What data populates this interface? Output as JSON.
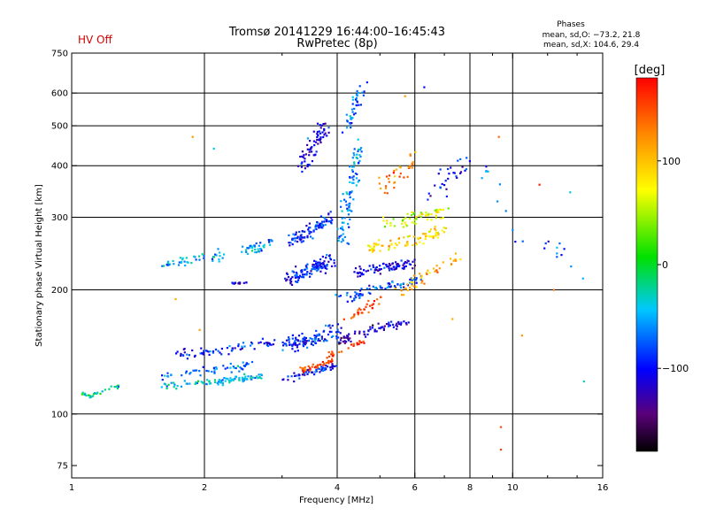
{
  "header": {
    "hv_status": "HV Off",
    "title_line1": "Tromsø 20141229 16:44:00–16:45:43",
    "title_line2": "RwPretec (8p)",
    "phases_title": "Phases",
    "phases_O": "mean, sd,O: −73.2, 21.8",
    "phases_X": "mean, sd,X: 104.6, 29.4"
  },
  "colors": {
    "background": "#ffffff",
    "grid": "#000000",
    "warning": "#d40000"
  },
  "colorbar": {
    "unit_label": "[deg]",
    "ticks": [
      "100",
      "0",
      "−100"
    ],
    "tick_values": [
      100,
      0,
      -100
    ],
    "range": [
      -180,
      180
    ],
    "colormap": "rainbow (black-violet-blue-cyan-green-yellow-orange-red)"
  },
  "chart_data": {
    "type": "scatter",
    "title": "Tromsø 20141229 16:44:00–16:45:43",
    "subtitle": "RwPretec (8p)",
    "xlabel": "Frequency [MHz]",
    "ylabel": "Stationary phase Virtual Height [km]",
    "x_scale": "log",
    "y_scale": "log",
    "xlim": [
      1,
      16
    ],
    "ylim": [
      70,
      750
    ],
    "x_ticks": [
      1,
      2,
      4,
      6,
      8,
      10,
      16
    ],
    "x_tick_labels": [
      "1",
      "2",
      "4",
      "6",
      "8",
      "10",
      "16"
    ],
    "x_grid": [
      2,
      4,
      6,
      8,
      10
    ],
    "y_ticks": [
      75,
      100,
      200,
      300,
      400,
      500,
      600,
      750
    ],
    "y_tick_labels": [
      "75",
      "100",
      "200",
      "300",
      "400",
      "500",
      "600",
      "750"
    ],
    "y_grid": [
      100,
      200,
      300,
      400,
      500,
      600
    ],
    "grid": true,
    "color_encoding": "phase in degrees",
    "traces": [
      {
        "x": [
          1.05,
          1.1,
          1.15,
          1.2,
          1.28
        ],
        "y": [
          112,
          110,
          113,
          115,
          117
        ],
        "phase": -25,
        "spread": 0.2,
        "count": 30
      },
      {
        "x": [
          1.6,
          1.75,
          1.9,
          2.1,
          2.3,
          2.5,
          2.7
        ],
        "y": [
          118,
          118,
          119,
          120,
          121,
          122,
          124
        ],
        "phase": -40,
        "spread": 0.4,
        "count": 90
      },
      {
        "x": [
          1.7,
          1.9,
          2.1,
          2.3,
          2.5,
          2.7,
          2.9
        ],
        "y": [
          140,
          140,
          142,
          144,
          146,
          149,
          150
        ],
        "phase": -95,
        "spread": 0.5,
        "count": 70
      },
      {
        "x": [
          1.6,
          1.8,
          2.0,
          2.2,
          2.4,
          2.6
        ],
        "y": [
          124,
          126,
          127,
          128,
          130,
          133
        ],
        "phase": -70,
        "spread": 0.5,
        "count": 50
      },
      {
        "x": [
          1.6,
          1.75,
          1.9,
          2.05,
          2.2
        ],
        "y": [
          230,
          235,
          238,
          240,
          243
        ],
        "phase": -50,
        "spread": 0.6,
        "count": 45
      },
      {
        "x": [
          2.4,
          2.55,
          2.7,
          2.85
        ],
        "y": [
          248,
          252,
          256,
          262
        ],
        "phase": -60,
        "spread": 0.6,
        "count": 40
      },
      {
        "x": [
          2.3,
          2.4,
          2.5
        ],
        "y": [
          208,
          208,
          208
        ],
        "phase": -130,
        "spread": 0.1,
        "count": 14
      },
      {
        "x": [
          3.0,
          3.2,
          3.4,
          3.6,
          3.8,
          4.0
        ],
        "y": [
          120,
          123,
          126,
          128,
          130,
          133
        ],
        "phase": -100,
        "spread": 0.4,
        "count": 55
      },
      {
        "x": [
          3.3,
          3.45,
          3.6,
          3.75,
          3.9
        ],
        "y": [
          128,
          129,
          131,
          133,
          136
        ],
        "phase": 150,
        "spread": 0.3,
        "count": 40
      },
      {
        "x": [
          3.0,
          3.2,
          3.4,
          3.6,
          3.8,
          4.0
        ],
        "y": [
          145,
          148,
          150,
          153,
          157,
          160
        ],
        "phase": -90,
        "spread": 0.8,
        "count": 110
      },
      {
        "x": [
          3.1,
          3.3,
          3.5,
          3.7,
          3.9
        ],
        "y": [
          210,
          220,
          225,
          230,
          235
        ],
        "phase": -95,
        "spread": 0.8,
        "count": 120
      },
      {
        "x": [
          3.1,
          3.3,
          3.5,
          3.7,
          3.9
        ],
        "y": [
          260,
          270,
          280,
          290,
          300
        ],
        "phase": -90,
        "spread": 0.8,
        "count": 90
      },
      {
        "x": [
          3.3,
          3.45,
          3.6,
          3.75
        ],
        "y": [
          400,
          430,
          470,
          500
        ],
        "phase": -110,
        "spread": 1.0,
        "count": 70
      },
      {
        "x": [
          4.1,
          4.2,
          4.3,
          4.4,
          4.5
        ],
        "y": [
          260,
          300,
          350,
          400,
          450
        ],
        "phase": -60,
        "spread": 1.0,
        "count": 90
      },
      {
        "x": [
          4.2,
          4.3,
          4.45,
          4.6
        ],
        "y": [
          480,
          530,
          580,
          620
        ],
        "phase": -70,
        "spread": 0.8,
        "count": 40
      },
      {
        "x": [
          4.0,
          4.4,
          4.8,
          5.3,
          5.8
        ],
        "y": [
          150,
          155,
          160,
          165,
          168
        ],
        "phase": -120,
        "spread": 0.5,
        "count": 70
      },
      {
        "x": [
          4.0,
          4.4,
          4.8,
          5.3,
          5.8,
          6.3
        ],
        "y": [
          190,
          195,
          200,
          205,
          210,
          215
        ],
        "phase": -80,
        "spread": 0.6,
        "count": 70
      },
      {
        "x": [
          4.1,
          4.4,
          4.7,
          5.1
        ],
        "y": [
          170,
          175,
          182,
          190
        ],
        "phase": 150,
        "spread": 0.5,
        "count": 30
      },
      {
        "x": [
          3.8,
          4.0,
          4.3,
          4.6
        ],
        "y": [
          138,
          140,
          145,
          150
        ],
        "phase": 160,
        "spread": 0.4,
        "count": 25
      },
      {
        "x": [
          4.4,
          4.8,
          5.2,
          5.6,
          6.0
        ],
        "y": [
          220,
          225,
          228,
          230,
          232
        ],
        "phase": -110,
        "spread": 0.6,
        "count": 80
      },
      {
        "x": [
          4.6,
          5.0,
          5.5,
          6.0,
          6.5,
          7.0
        ],
        "y": [
          250,
          255,
          260,
          265,
          270,
          278
        ],
        "phase": 90,
        "spread": 0.7,
        "count": 80
      },
      {
        "x": [
          5.0,
          5.5,
          6.0,
          6.5,
          7.0
        ],
        "y": [
          290,
          295,
          300,
          305,
          310
        ],
        "phase": 60,
        "spread": 0.8,
        "count": 60
      },
      {
        "x": [
          5.5,
          6.0,
          6.5,
          7.0,
          7.6
        ],
        "y": [
          200,
          210,
          220,
          230,
          240
        ],
        "phase": 110,
        "spread": 0.8,
        "count": 45
      },
      {
        "x": [
          5.0,
          5.5,
          6.0
        ],
        "y": [
          350,
          380,
          420
        ],
        "phase": 130,
        "spread": 1.0,
        "count": 35
      },
      {
        "x": [
          6.5,
          7.0,
          7.5,
          8.0
        ],
        "y": [
          330,
          360,
          390,
          420
        ],
        "phase": -100,
        "spread": 1.2,
        "count": 30
      },
      {
        "x": [
          8.6,
          9.2,
          10.5,
          12.5,
          14.0
        ],
        "y": [
          400,
          350,
          280,
          250,
          220
        ],
        "phase": -70,
        "spread": 1.5,
        "count": 22
      }
    ],
    "extra_points": [
      {
        "x": 1.88,
        "y": 470,
        "phase": 120
      },
      {
        "x": 2.1,
        "y": 440,
        "phase": -40
      },
      {
        "x": 1.72,
        "y": 190,
        "phase": 110
      },
      {
        "x": 1.95,
        "y": 160,
        "phase": 115
      },
      {
        "x": 9.4,
        "y": 93,
        "phase": 150
      },
      {
        "x": 9.4,
        "y": 82,
        "phase": 155
      },
      {
        "x": 9.3,
        "y": 470,
        "phase": 140
      },
      {
        "x": 12.4,
        "y": 200,
        "phase": 130
      },
      {
        "x": 11.5,
        "y": 360,
        "phase": 170
      },
      {
        "x": 10.5,
        "y": 155,
        "phase": 120
      },
      {
        "x": 14.5,
        "y": 120,
        "phase": -30
      },
      {
        "x": 13.5,
        "y": 345,
        "phase": -35
      },
      {
        "x": 7.3,
        "y": 170,
        "phase": 110
      },
      {
        "x": 6.3,
        "y": 620,
        "phase": -100
      },
      {
        "x": 5.7,
        "y": 590,
        "phase": 120
      }
    ]
  }
}
